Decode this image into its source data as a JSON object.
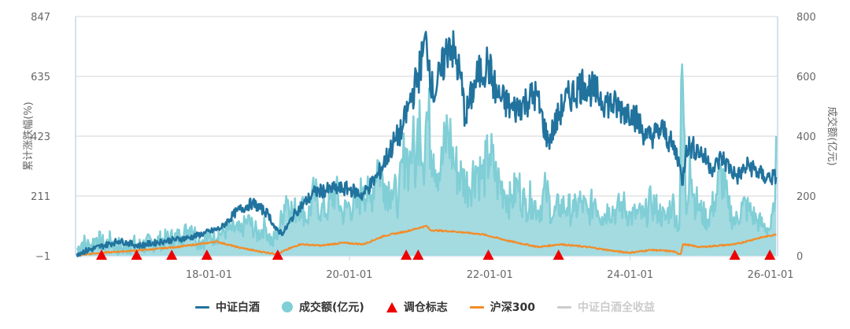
{
  "legend": {
    "items": [
      {
        "label": "中证白酒",
        "symbol": "line",
        "color": "#21739e",
        "enabled": true
      },
      {
        "label": "成交额(亿元)",
        "symbol": "circle",
        "color": "#80ced6",
        "enabled": true
      },
      {
        "label": "调仓标志",
        "symbol": "triangle",
        "color": "#ee0000",
        "enabled": true
      },
      {
        "label": "沪深300",
        "symbol": "line",
        "color": "#f28c28",
        "enabled": true
      },
      {
        "label": "中证白酒全收益",
        "symbol": "line",
        "color": "#cccccc",
        "enabled": false
      }
    ]
  },
  "chart_data": {
    "type": "line",
    "title": "",
    "xlabel": "",
    "ylabel": "累计涨跌幅(%)",
    "y2label": "成交额(亿元)",
    "ylim": [
      -1,
      847
    ],
    "y2lim": [
      0,
      800
    ],
    "xlim": [
      2016.1,
      2026.1
    ],
    "yticks": [
      "847",
      "635",
      "423",
      "211",
      "-1"
    ],
    "y2ticks": [
      "800",
      "600",
      "400",
      "200",
      "0"
    ],
    "xticks": [
      {
        "label": "18-01-01",
        "x": 2018.0
      },
      {
        "label": "20-01-01",
        "x": 2020.0
      },
      {
        "label": "22-01-01",
        "x": 2022.0
      },
      {
        "label": "24-01-01",
        "x": 2024.0
      },
      {
        "label": "26-01-01",
        "x": 2026.0
      }
    ],
    "grid": true,
    "legend_position": "bottom",
    "series": [
      {
        "name": "中证白酒",
        "type": "line",
        "axis": "left",
        "color": "#21739e",
        "x": [
          2016.12,
          2016.5,
          2016.72,
          2017.0,
          2017.38,
          2017.72,
          2017.95,
          2018.17,
          2018.4,
          2018.62,
          2018.85,
          2018.95,
          2019.06,
          2019.23,
          2019.51,
          2019.79,
          2020.0,
          2020.19,
          2020.41,
          2020.64,
          2020.75,
          2020.86,
          2020.97,
          2021.1,
          2021.19,
          2021.3,
          2021.43,
          2021.59,
          2021.65,
          2021.81,
          2021.97,
          2022.1,
          2022.33,
          2022.66,
          2022.83,
          2023.06,
          2023.34,
          2023.67,
          2023.9,
          2024.02,
          2024.24,
          2024.47,
          2024.69,
          2024.74,
          2024.8,
          2024.97,
          2025.19,
          2025.3,
          2025.52,
          2025.69,
          2025.91,
          2026.08
        ],
        "values": [
          7,
          35,
          52,
          35,
          52,
          63,
          80,
          97,
          158,
          186,
          147,
          91,
          80,
          152,
          225,
          236,
          236,
          214,
          286,
          403,
          443,
          543,
          627,
          766,
          571,
          641,
          766,
          627,
          487,
          627,
          682,
          571,
          515,
          571,
          403,
          543,
          613,
          543,
          515,
          515,
          417,
          445,
          348,
          250,
          389,
          375,
          306,
          348,
          278,
          320,
          278,
          278
        ]
      },
      {
        "name": "成交额(亿元)",
        "type": "area",
        "axis": "right",
        "color": "#80ced6",
        "x": [
          2016.12,
          2016.2,
          2016.3,
          2016.4,
          2016.5,
          2016.6,
          2016.75,
          2016.9,
          2017.0,
          2017.2,
          2017.4,
          2017.6,
          2017.75,
          2017.85,
          2018.0,
          2018.15,
          2018.3,
          2018.45,
          2018.55,
          2018.7,
          2018.8,
          2018.9,
          2019.0,
          2019.1,
          2019.2,
          2019.3,
          2019.4,
          2019.5,
          2019.6,
          2019.7,
          2019.8,
          2019.9,
          2020.0,
          2020.1,
          2020.2,
          2020.3,
          2020.4,
          2020.5,
          2020.6,
          2020.7,
          2020.8,
          2020.85,
          2020.9,
          2020.95,
          2021.0,
          2021.05,
          2021.1,
          2021.2,
          2021.3,
          2021.4,
          2021.45,
          2021.5,
          2021.6,
          2021.7,
          2021.8,
          2021.9,
          2022.0,
          2022.1,
          2022.2,
          2022.3,
          2022.4,
          2022.5,
          2022.6,
          2022.7,
          2022.8,
          2022.9,
          2023.0,
          2023.1,
          2023.2,
          2023.3,
          2023.4,
          2023.5,
          2023.6,
          2023.7,
          2023.8,
          2023.9,
          2024.0,
          2024.1,
          2024.2,
          2024.3,
          2024.4,
          2024.5,
          2024.6,
          2024.7,
          2024.74,
          2024.8,
          2024.85,
          2024.9,
          2025.0,
          2025.1,
          2025.2,
          2025.3,
          2025.4,
          2025.5,
          2025.6,
          2025.7,
          2025.8,
          2025.9,
          2026.0,
          2026.05,
          2026.08
        ],
        "values": [
          20,
          45,
          30,
          60,
          35,
          50,
          25,
          40,
          30,
          45,
          55,
          65,
          100,
          50,
          60,
          75,
          90,
          80,
          120,
          70,
          100,
          40,
          90,
          200,
          140,
          180,
          120,
          210,
          150,
          160,
          220,
          140,
          170,
          160,
          230,
          180,
          320,
          240,
          220,
          190,
          360,
          300,
          380,
          280,
          520,
          300,
          480,
          340,
          280,
          420,
          370,
          300,
          260,
          230,
          300,
          260,
          340,
          250,
          220,
          180,
          240,
          170,
          190,
          150,
          220,
          130,
          170,
          160,
          150,
          180,
          140,
          190,
          130,
          160,
          150,
          170,
          130,
          140,
          130,
          180,
          150,
          120,
          180,
          90,
          640,
          140,
          350,
          200,
          150,
          120,
          180,
          280,
          160,
          110,
          170,
          150,
          120,
          100,
          90,
          150,
          400
        ]
      },
      {
        "name": "调仓标志",
        "type": "scatter",
        "axis": "bottom",
        "color": "#ee0000",
        "x": [
          2016.47,
          2016.97,
          2017.47,
          2017.97,
          2018.98,
          2020.81,
          2020.98,
          2021.98,
          2022.98,
          2025.49,
          2025.99
        ],
        "values": [
          0,
          0,
          0,
          0,
          0,
          0,
          0,
          0,
          0,
          0,
          0
        ]
      },
      {
        "name": "沪深300",
        "type": "line",
        "axis": "left",
        "color": "#f28c28",
        "x": [
          2016.12,
          2016.4,
          2016.8,
          2017.2,
          2017.6,
          2018.0,
          2018.1,
          2018.4,
          2018.7,
          2018.98,
          2019.1,
          2019.3,
          2019.6,
          2019.9,
          2020.2,
          2020.5,
          2020.8,
          2021.1,
          2021.15,
          2021.5,
          2021.9,
          2022.3,
          2022.7,
          2023.0,
          2023.4,
          2023.8,
          2024.0,
          2024.3,
          2024.6,
          2024.72,
          2024.75,
          2025.0,
          2025.5,
          2025.8,
          2026.08
        ],
        "values": [
          2,
          8,
          15,
          22,
          32,
          45,
          50,
          30,
          15,
          5,
          20,
          40,
          35,
          45,
          40,
          70,
          85,
          105,
          90,
          85,
          75,
          50,
          30,
          40,
          30,
          15,
          10,
          20,
          15,
          5,
          40,
          30,
          40,
          60,
          75
        ]
      },
      {
        "name": "中证白酒全收益",
        "type": "line",
        "axis": "left",
        "color": "#cccccc",
        "hidden": true,
        "x": [],
        "values": []
      }
    ]
  }
}
